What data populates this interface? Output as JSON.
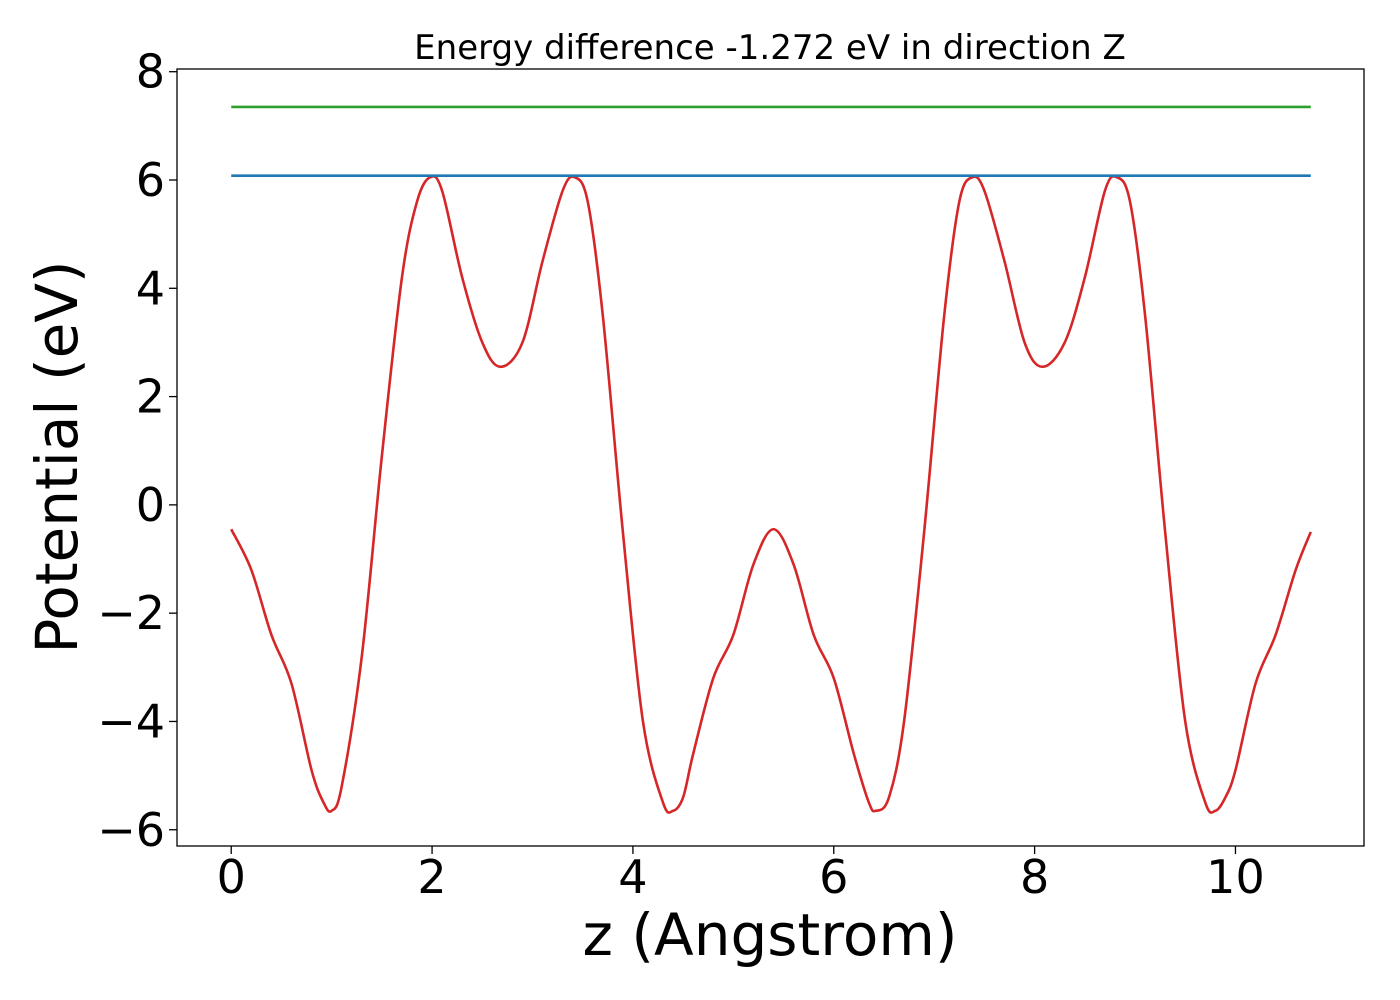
{
  "chart_data": {
    "type": "line",
    "title": "Energy difference -1.272 eV in direction Z",
    "xlabel": "z (Angstrom)",
    "ylabel": "Potential (eV)",
    "xlim": [
      -0.54,
      11.28
    ],
    "ylim": [
      -6.3,
      8.05
    ],
    "x_ticks": [
      0,
      2,
      4,
      6,
      8,
      10
    ],
    "x_tick_labels": [
      "0",
      "2",
      "4",
      "6",
      "8",
      "10"
    ],
    "y_ticks": [
      -6,
      -4,
      -2,
      0,
      2,
      4,
      6,
      8
    ],
    "y_tick_labels": [
      "−6",
      "−4",
      "−2",
      "0",
      "2",
      "4",
      "6",
      "8"
    ],
    "grid": false,
    "series": [
      {
        "color": "#d62728",
        "x": [
          0.0,
          0.2,
          0.4,
          0.6,
          0.8,
          0.92,
          1.0,
          1.1,
          1.3,
          1.5,
          1.7,
          1.85,
          1.98,
          2.1,
          2.3,
          2.5,
          2.68,
          2.9,
          3.1,
          3.3,
          3.42,
          3.55,
          3.7,
          3.9,
          4.1,
          4.3,
          4.4,
          4.5,
          4.6,
          4.8,
          5.0,
          5.2,
          5.4,
          5.6,
          5.8,
          6.0,
          6.2,
          6.35,
          6.42,
          6.55,
          6.7,
          6.9,
          7.1,
          7.25,
          7.38,
          7.5,
          7.7,
          7.9,
          8.08,
          8.3,
          8.5,
          8.7,
          8.82,
          8.95,
          9.1,
          9.3,
          9.5,
          9.7,
          9.8,
          9.9,
          10.0,
          10.2,
          10.4,
          10.6,
          10.75
        ],
        "y": [
          -0.45,
          -1.2,
          -2.4,
          -3.3,
          -4.9,
          -5.5,
          -5.65,
          -5.2,
          -2.8,
          0.9,
          4.2,
          5.6,
          6.05,
          5.8,
          4.2,
          3.0,
          2.55,
          3.0,
          4.5,
          5.8,
          6.05,
          5.6,
          3.5,
          -0.5,
          -4.0,
          -5.5,
          -5.65,
          -5.4,
          -4.6,
          -3.2,
          -2.4,
          -1.1,
          -0.45,
          -1.1,
          -2.4,
          -3.2,
          -4.6,
          -5.5,
          -5.65,
          -5.4,
          -4.0,
          -0.5,
          3.5,
          5.6,
          6.05,
          5.8,
          4.5,
          3.0,
          2.55,
          3.0,
          4.2,
          5.8,
          6.05,
          5.6,
          3.5,
          -0.5,
          -4.0,
          -5.5,
          -5.65,
          -5.4,
          -4.9,
          -3.3,
          -2.4,
          -1.2,
          -0.5
        ]
      },
      {
        "color": "#1f77b4",
        "x": [
          0.0,
          10.75
        ],
        "y": [
          6.08,
          6.08
        ]
      },
      {
        "color": "#2ca02c",
        "x": [
          0.0,
          10.75
        ],
        "y": [
          7.35,
          7.35
        ]
      }
    ]
  }
}
